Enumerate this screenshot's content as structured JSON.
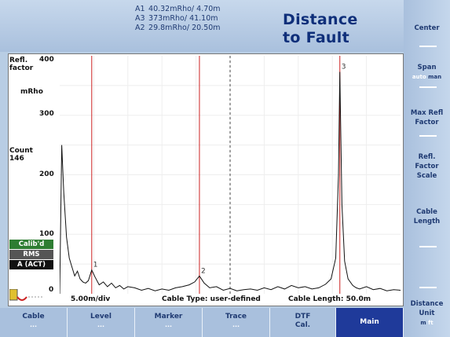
{
  "header": {
    "title_line1": "Distance",
    "title_line2": "to Fault",
    "markers": [
      {
        "label": "A1",
        "value": "40.32mRho/ 4.70m"
      },
      {
        "label": "A3",
        "value": "373mRho/ 41.10m"
      },
      {
        "label": "A2",
        "value": "29.8mRho/ 20.50m"
      }
    ]
  },
  "plot": {
    "ylabel_line1": "Refl.",
    "ylabel_line2": "factor",
    "yunit": "mRho",
    "count_label": "Count",
    "count_value": "146",
    "yticks": [
      "400",
      "300",
      "200",
      "100",
      "0"
    ],
    "marker_labels": [
      "1",
      "2",
      "3"
    ],
    "status": [
      "Calib'd",
      "RMS",
      "A (ACT)"
    ],
    "status_colors": [
      "#2e7d32",
      "#555555",
      "#111111"
    ],
    "info_div": "5.00m/div",
    "info_cable_type": "Cable Type: user-defined",
    "info_cable_length": "Cable Length: 50.0m"
  },
  "chart_data": {
    "type": "line",
    "ylabel": "Refl. factor mRho",
    "ylim": [
      0,
      400
    ],
    "x_per_div": "5.00m/div",
    "xlim": [
      0,
      50
    ],
    "markers": [
      {
        "name": "1",
        "x": 4.7,
        "y": 40.32
      },
      {
        "name": "2",
        "x": 20.5,
        "y": 29.8
      },
      {
        "name": "3",
        "x": 41.1,
        "y": 373
      }
    ],
    "center_line_x": 25,
    "series": [
      {
        "x": [
          0,
          0.3,
          0.6,
          1.0,
          1.4,
          1.8,
          2.2,
          2.6,
          3.0,
          3.4,
          3.8,
          4.2,
          4.7,
          5.2,
          5.8,
          6.4,
          7.0,
          7.6,
          8.2,
          8.8,
          9.4,
          10,
          11,
          12,
          13,
          14,
          15,
          16,
          17,
          18,
          19,
          19.8,
          20.5,
          21.2,
          22,
          23,
          24,
          25,
          26,
          27,
          28,
          29,
          30,
          31,
          32,
          33,
          34,
          35,
          36,
          37,
          38,
          39,
          39.8,
          40.5,
          40.9,
          41.1,
          41.4,
          41.8,
          42.3,
          43,
          43.5,
          44,
          45,
          46,
          47,
          48,
          49,
          50
        ],
        "values": [
          0,
          250,
          170,
          95,
          60,
          45,
          30,
          38,
          25,
          20,
          18,
          22,
          40,
          28,
          15,
          20,
          12,
          18,
          10,
          14,
          8,
          12,
          10,
          6,
          9,
          5,
          8,
          6,
          10,
          12,
          15,
          20,
          30,
          18,
          10,
          12,
          6,
          9,
          5,
          7,
          8,
          6,
          10,
          7,
          12,
          8,
          14,
          10,
          12,
          8,
          10,
          16,
          25,
          60,
          200,
          373,
          150,
          55,
          25,
          14,
          10,
          8,
          12,
          7,
          9,
          5,
          7,
          6
        ]
      }
    ]
  },
  "softkeys": {
    "center": "Center",
    "span": "Span",
    "span_sub_a": "auto",
    "span_sub_b": "man",
    "max_refl_1": "Max Refl",
    "max_refl_2": "Factor",
    "refl_scale_1": "Refl.",
    "refl_scale_2": "Factor",
    "refl_scale_3": "Scale",
    "cable_len_1": "Cable",
    "cable_len_2": "Length",
    "dist_unit_1": "Distance",
    "dist_unit_2": "Unit",
    "dist_unit_sub_a": "m",
    "dist_unit_sub_b": "ft"
  },
  "bottom_keys": [
    {
      "label": "Cable",
      "sub": "..."
    },
    {
      "label": "Level",
      "sub": "..."
    },
    {
      "label": "Marker",
      "sub": "..."
    },
    {
      "label": "Trace",
      "sub": "..."
    },
    {
      "label": "DTF",
      "label2": "Cal.",
      "sub": ""
    },
    {
      "label": "Main",
      "sub": ""
    }
  ],
  "colors": {
    "marker_line": "#cc2222",
    "trace": "#111111",
    "active_key": "#1f3a9a"
  }
}
